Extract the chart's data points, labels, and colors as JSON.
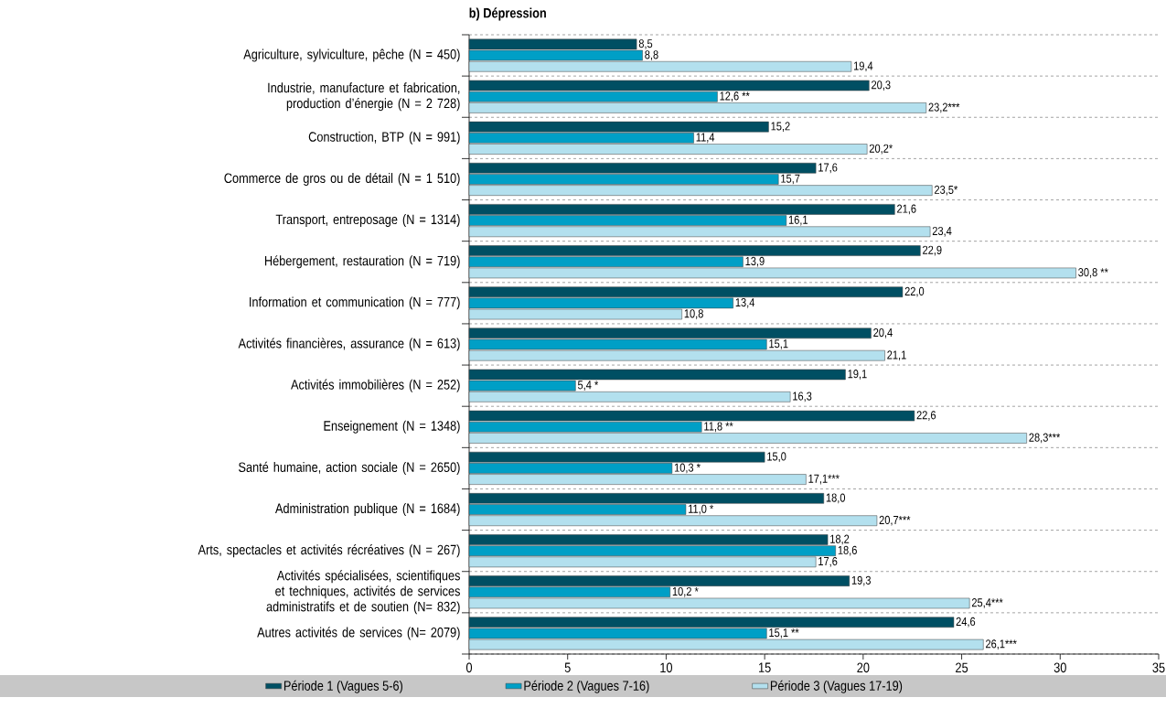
{
  "chart_data": {
    "type": "bar",
    "orientation": "horizontal",
    "title": "b) Dépression",
    "categories": [
      "Agriculture, sylviculture, pêche (N = 450)",
      "Industrie, manufacture et fabrication, production d’énergie (N = 2 728)",
      "Construction, BTP (N = 991)",
      "Commerce de gros ou de détail (N = 1 510)",
      "Transport, entreposage (N = 1314)",
      "Hébergement, restauration (N = 719)",
      "Information et communication (N = 777)",
      "Activités financières, assurance (N = 613)",
      "Activités immobilières (N = 252)",
      "Enseignement (N = 1348)",
      "Santé humaine, action sociale (N = 2650)",
      "Administration publique (N = 1684)",
      "Arts, spectacles et activités récréatives (N = 267)",
      "Activités spécialisées, scientifiques et techniques, activités de services administratifs et de soutien (N= 832)",
      "Autres activités de services (N= 2079)"
    ],
    "series": [
      {
        "name": "Période 1 (Vagues 5-6)",
        "color": "#004f63",
        "values": [
          8.5,
          20.3,
          15.2,
          17.6,
          21.6,
          22.9,
          22.0,
          20.4,
          19.1,
          22.6,
          15.0,
          18.0,
          18.2,
          19.3,
          24.6
        ],
        "value_labels": [
          "8,5",
          "20,3",
          "15,2",
          "17,6",
          "21,6",
          "22,9",
          "22,0",
          "20,4",
          "19,1",
          "22,6",
          "15,0",
          "18,0",
          "18,2",
          "19,3",
          "24,6"
        ]
      },
      {
        "name": "Période 2 (Vagues 7-16)",
        "color": "#009fc6",
        "values": [
          8.8,
          12.6,
          11.4,
          15.7,
          16.1,
          13.9,
          13.4,
          15.1,
          5.4,
          11.8,
          10.3,
          11.0,
          18.6,
          10.2,
          15.1
        ],
        "value_labels": [
          "8,8",
          "12,6 **",
          "11,4",
          "15,7",
          "16,1",
          "13,9",
          "13,4",
          "15,1",
          "5,4 *",
          "11,8 **",
          "10,3 *",
          "11,0 *",
          "18,6",
          "10,2 *",
          "15,1 **"
        ]
      },
      {
        "name": "Période 3 (Vagues 17-19)",
        "color": "#b3e0ee",
        "values": [
          19.4,
          23.2,
          20.2,
          23.5,
          23.4,
          30.8,
          10.8,
          21.1,
          16.3,
          28.3,
          17.1,
          20.7,
          17.6,
          25.4,
          26.1
        ],
        "value_labels": [
          "19,4",
          "23,2***",
          "20,2*",
          "23,5*",
          "23,4",
          "30,8 **",
          "10,8",
          "21,1",
          "16,3",
          "28,3***",
          "17,1***",
          "20,7***",
          "17,6",
          "25,4***",
          "26,1***"
        ]
      }
    ],
    "xlim": [
      0,
      35
    ],
    "xticks": [
      0,
      5,
      10,
      15,
      20,
      25,
      30,
      35
    ],
    "grid": "y",
    "legend": "bottom"
  }
}
